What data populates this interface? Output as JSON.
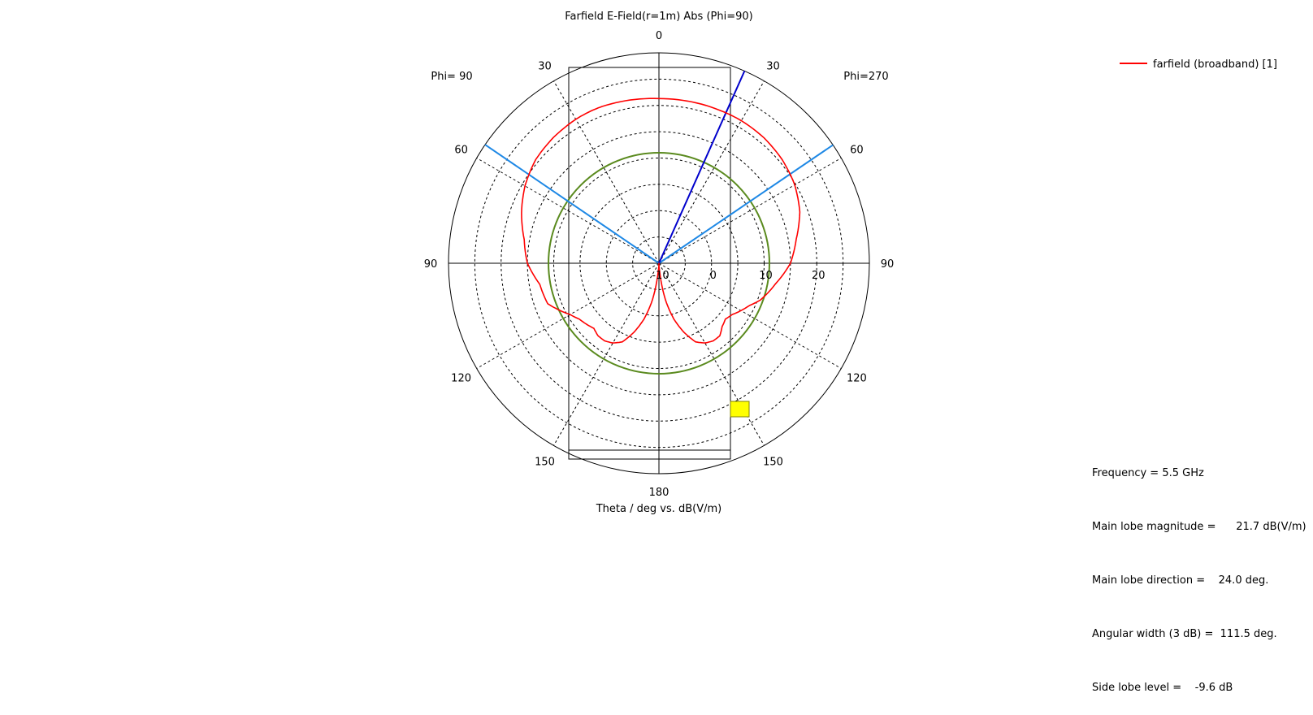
{
  "chart_data": {
    "type": "polar",
    "title": "Farfield E-Field(r=1m) Abs (Phi=90)",
    "xlabel": "Theta / deg vs. dB(V/m)",
    "left_label": "Phi= 90",
    "right_label": "Phi=270",
    "angle_ticks": [
      "0",
      "30",
      "60",
      "90",
      "120",
      "150",
      "180",
      "150",
      "120",
      "90",
      "60",
      "30"
    ],
    "radial_ticks": [
      "-10",
      "0",
      "10",
      "20"
    ],
    "r_range": [
      -10,
      30
    ],
    "legend": {
      "position": "top-right",
      "label": "farfield (broadband) [1]"
    },
    "colors": {
      "series": "#ff0000",
      "main_lobe": "#0000cc",
      "beamwidth": "#1e88e5",
      "threshold_circle": "#5a8a1e",
      "grid": "#000000",
      "marker": "#ffff00"
    },
    "main_lobe_direction_deg": 24.0,
    "main_lobe_magnitude": 21.7,
    "beamwidth_lines_deg": [
      -55.7,
      55.8
    ],
    "threshold_circle_level": 11.0,
    "box_theta_edges_deg": [
      -34,
      34
    ],
    "series": [
      {
        "name": "farfield (broadband) [1]",
        "theta": [
          0,
          10,
          20,
          24,
          30,
          40,
          50,
          60,
          70,
          80,
          90,
          100,
          110,
          115,
          120,
          125,
          130,
          135,
          140,
          145,
          150,
          155,
          160,
          165,
          170,
          175,
          180,
          185,
          190,
          195,
          200,
          205,
          210,
          215,
          220,
          225,
          230,
          235,
          240,
          245,
          250,
          260,
          270,
          280,
          290,
          300,
          310,
          320,
          330,
          340,
          350,
          360
        ],
        "values": [
          21.3,
          21.5,
          21.7,
          21.7,
          21.6,
          21.2,
          20.6,
          19.4,
          17.8,
          16.0,
          15.0,
          13.0,
          12.5,
          11.0,
          9.5,
          8.5,
          8.0,
          7.5,
          8.0,
          8.0,
          7.5,
          6.5,
          4.0,
          1.0,
          -3.0,
          -8.5,
          -10.0,
          -8.5,
          -3.0,
          1.0,
          4.0,
          6.5,
          7.5,
          8.0,
          8.0,
          7.0,
          6.5,
          7.0,
          8.0,
          9.0,
          10.5,
          12.5,
          15.0,
          16.5,
          18.5,
          19.8,
          20.6,
          21.1,
          21.3,
          21.3,
          21.3,
          21.3
        ]
      }
    ]
  },
  "info": {
    "frequency": "Frequency = 5.5 GHz",
    "main_lobe_magnitude": "Main lobe magnitude =      21.7 dB(V/m)",
    "main_lobe_direction": "Main lobe direction =    24.0 deg.",
    "angular_width": "Angular width (3 dB) =  111.5 deg.",
    "side_lobe_level": "Side lobe level =    -9.6 dB"
  }
}
